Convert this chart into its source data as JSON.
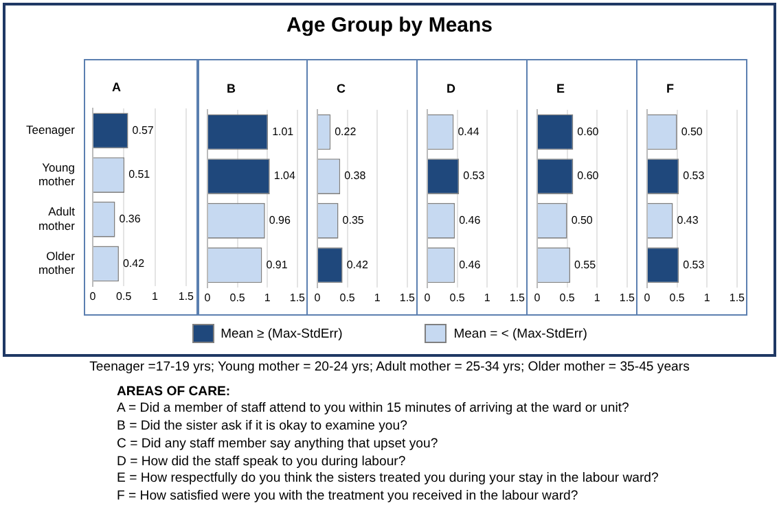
{
  "chart_data": [
    {
      "type": "other",
      "title": "Age Group by Means",
      "annotations": [
        "Teenager =17-19 yrs; Young mother = 20-24 yrs; Adult mother = 25-34 yrs; Older mother = 35-45 years",
        "AREAS OF CARE:",
        "A = Did a member of staff attend to you within 15 minutes of arriving at the ward or unit?",
        "B = Did the sister ask if it is okay to examine you?",
        "C = Did any staff member say anything that upset you?",
        "D = How did the staff speak to you during labour?",
        "E = How respectfully do you think the sisters treated you during your stay in the labour ward?",
        "F = How satisfied were you with the treatment you received in the labour ward?"
      ]
    },
    {
      "type": "bar",
      "orientation": "horizontal",
      "stacked": true,
      "title": "A",
      "categories": [
        "Teenager",
        "Young mother",
        "Adult mother",
        "Older mother"
      ],
      "xlim": [
        0,
        1.5
      ],
      "xticks": [
        0,
        0.5,
        1,
        1.5
      ],
      "grid": "x",
      "legend": "bottom",
      "series": [
        {
          "name": "Mean ≥  (Max-StdErr)",
          "color": "#1f487c",
          "values": [
            0.57,
            null,
            null,
            null
          ],
          "value_labels": [
            "0.57",
            null,
            null,
            null
          ]
        },
        {
          "name": "Mean = < (Max-StdErr)",
          "color": "#c6d9f1",
          "values": [
            null,
            0.51,
            0.36,
            0.42
          ],
          "value_labels": [
            null,
            "0.51",
            "0.36",
            "0.42"
          ]
        }
      ]
    },
    {
      "type": "bar",
      "orientation": "horizontal",
      "stacked": true,
      "title": "B",
      "categories": [
        null,
        null,
        null,
        null
      ],
      "xlim": [
        0,
        1.5
      ],
      "xticks": [
        0,
        0.5,
        1,
        1.5
      ],
      "grid": "x",
      "tick_labels": "x",
      "series": [
        {
          "color": "#1f487c",
          "values": [
            1.01,
            1.04,
            null,
            null
          ],
          "value_labels": [
            "1.01",
            "1.04",
            null,
            null
          ]
        },
        {
          "color": "#c6d9f1",
          "values": [
            null,
            null,
            0.96,
            0.91
          ],
          "value_labels": [
            null,
            null,
            "0.96",
            "0.91"
          ]
        }
      ]
    },
    {
      "type": "bar",
      "orientation": "horizontal",
      "stacked": true,
      "title": "C",
      "categories": [
        null,
        null,
        null,
        null
      ],
      "xlim": [
        0,
        1.5
      ],
      "xticks": [
        0,
        0.5,
        1,
        1.5
      ],
      "grid": "x",
      "tick_labels": "x",
      "series": [
        {
          "color": "#1f487c",
          "values": [
            null,
            null,
            null,
            0.42
          ],
          "value_labels": [
            null,
            null,
            null,
            "0.42"
          ]
        },
        {
          "color": "#c6d9f1",
          "values": [
            0.22,
            0.38,
            0.35,
            null
          ],
          "value_labels": [
            "0.22",
            "0.38",
            "0.35",
            null
          ]
        }
      ]
    },
    {
      "type": "bar",
      "orientation": "horizontal",
      "stacked": true,
      "title": "D",
      "categories": [
        null,
        null,
        null,
        null
      ],
      "xlim": [
        0,
        1.5
      ],
      "xticks": [
        0,
        0.5,
        1,
        1.5
      ],
      "grid": "x",
      "tick_labels": "x",
      "series": [
        {
          "color": "#1f487c",
          "values": [
            null,
            0.53,
            null,
            null
          ],
          "value_labels": [
            null,
            "0.53",
            null,
            null
          ]
        },
        {
          "color": "#c6d9f1",
          "values": [
            0.44,
            null,
            0.46,
            0.46
          ],
          "value_labels": [
            "0.44",
            null,
            "0.46",
            "0.46"
          ]
        }
      ]
    },
    {
      "type": "bar",
      "orientation": "horizontal",
      "stacked": true,
      "title": "E",
      "categories": [
        null,
        null,
        null,
        null
      ],
      "xlim": [
        0,
        1.5
      ],
      "xticks": [
        0,
        0.5,
        1,
        1.5
      ],
      "grid": "x",
      "tick_labels": "x",
      "series": [
        {
          "color": "#1f487c",
          "values": [
            0.6,
            0.6,
            null,
            null
          ],
          "value_labels": [
            "0.60",
            "0.60",
            null,
            null
          ]
        },
        {
          "color": "#c6d9f1",
          "values": [
            null,
            null,
            0.5,
            0.55
          ],
          "value_labels": [
            null,
            null,
            "0.50",
            "0.55"
          ]
        }
      ]
    },
    {
      "type": "bar",
      "orientation": "horizontal",
      "stacked": true,
      "title": "F",
      "categories": [
        null,
        null,
        null,
        null
      ],
      "xlim": [
        0,
        1.5
      ],
      "xticks": [
        0,
        0.5,
        1,
        1.5
      ],
      "grid": "x",
      "tick_labels": "x",
      "series": [
        {
          "color": "#1f487c",
          "values": [
            null,
            0.53,
            null,
            0.53
          ],
          "value_labels": [
            null,
            "0.53",
            null,
            "0.53"
          ]
        },
        {
          "color": "#c6d9f1",
          "values": [
            0.5,
            null,
            0.43,
            null
          ],
          "value_labels": [
            "0.50",
            null,
            "0.43",
            null
          ]
        }
      ]
    }
  ]
}
